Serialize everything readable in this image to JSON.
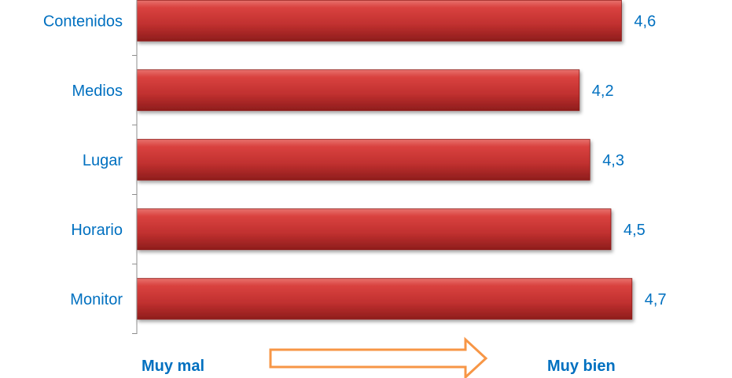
{
  "chart_data": {
    "type": "bar",
    "orientation": "horizontal",
    "categories": [
      "Contenidos",
      "Medios",
      "Lugar",
      "Horario",
      "Monitor"
    ],
    "values": [
      4.6,
      4.2,
      4.3,
      4.5,
      4.7
    ],
    "value_labels": [
      "4,6",
      "4,2",
      "4,3",
      "4,5",
      "4,7"
    ],
    "xlim": [
      0,
      5
    ],
    "grid": false,
    "legend": "none",
    "colors": {
      "bar": "#c0302f",
      "bar_light": "#e0524f",
      "bar_dark": "#8a1a19",
      "text": "#0070c0",
      "axis": "#8c8c8c",
      "arrow": "#f79646"
    },
    "scale": {
      "low": "Muy mal",
      "high": "Muy bien"
    }
  }
}
